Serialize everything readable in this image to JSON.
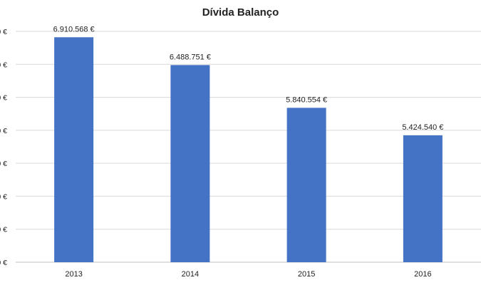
{
  "chart_data": {
    "type": "bar",
    "title": "Dívida Balanço",
    "categories": [
      "2013",
      "2014",
      "2015",
      "2016"
    ],
    "values": [
      6910568,
      6488751,
      5840554,
      5424540
    ],
    "data_labels": [
      "6.910.568 €",
      "6.488.751 €",
      "5.840.554 €",
      "5.424.540 €"
    ],
    "y_tick_suffix": "0 €",
    "ylim": [
      3500000,
      7000000
    ],
    "ytick_step": 500000,
    "grid": true,
    "legend": false,
    "bar_color": "#4472C4",
    "grid_color": "#d9d9d9",
    "axis_color": "#bfbfbf"
  }
}
